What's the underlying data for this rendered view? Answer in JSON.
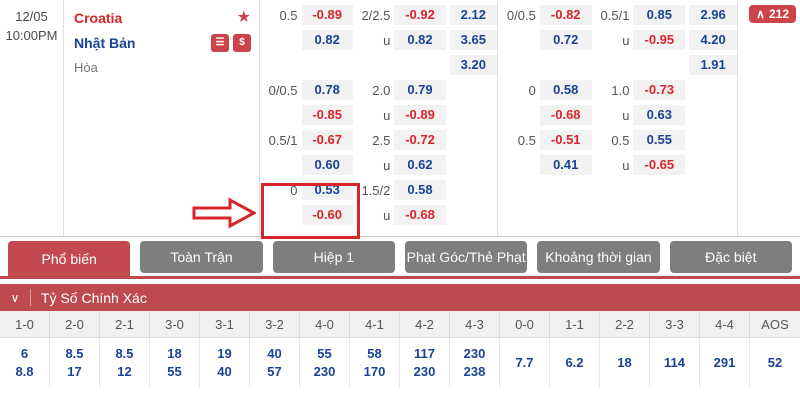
{
  "colors": {
    "odds_positive": "#1A4296",
    "odds_negative": "#D8242B",
    "accent_red": "#C4494F",
    "section_bar_red": "#BE4A50",
    "tab_inactive_gray": "#7E7E7E",
    "odds_cell_bg": "#F2F2F2",
    "highlight_red": "#D8242B"
  },
  "icons": {
    "favorite_glyph": "★",
    "stats_glyph": "☰",
    "money_glyph": "$",
    "collapse_glyph": "∨",
    "badge_up_glyph": "∧"
  },
  "match": {
    "date": "12/05",
    "time": "10:00PM",
    "home_team": "Croatia",
    "away_team": "Nhật Bản",
    "draw_label": "Hòa",
    "badge_count": "212"
  },
  "odds_groups": [
    {
      "blocks": [
        {
          "rows": [
            [
              "0.5",
              "-0.89",
              "2/2.5",
              "-0.92",
              "2.12"
            ],
            [
              "",
              "0.82",
              "u",
              "0.82",
              "3.65"
            ],
            [
              "",
              "",
              "",
              "",
              "3.20"
            ]
          ]
        },
        {
          "rows": [
            [
              "0/0.5",
              "0.78",
              "2.0",
              "0.79",
              ""
            ],
            [
              "",
              "-0.85",
              "u",
              "-0.89",
              ""
            ]
          ]
        },
        {
          "rows": [
            [
              "0.5/1",
              "-0.67",
              "2.5",
              "-0.72",
              ""
            ],
            [
              "",
              "0.60",
              "u",
              "0.62",
              ""
            ]
          ]
        },
        {
          "rows": [
            [
              "0",
              "0.53",
              "1.5/2",
              "0.58",
              ""
            ],
            [
              "",
              "-0.60",
              "u",
              "-0.68",
              ""
            ]
          ]
        }
      ]
    },
    {
      "blocks": [
        {
          "rows": [
            [
              "0/0.5",
              "-0.82",
              "0.5/1",
              "0.85",
              "2.96"
            ],
            [
              "",
              "0.72",
              "u",
              "-0.95",
              "4.20"
            ],
            [
              "",
              "",
              "",
              "",
              "1.91"
            ]
          ]
        },
        {
          "rows": [
            [
              "0",
              "0.58",
              "1.0",
              "-0.73",
              ""
            ],
            [
              "",
              "-0.68",
              "u",
              "0.63",
              ""
            ]
          ]
        },
        {
          "rows": [
            [
              "0.5",
              "-0.51",
              "0.5",
              "0.55",
              ""
            ],
            [
              "",
              "0.41",
              "u",
              "-0.65",
              ""
            ]
          ]
        }
      ]
    }
  ],
  "tabs": [
    {
      "label": "Phổ biến",
      "active": true
    },
    {
      "label": "Toàn Trận",
      "active": false
    },
    {
      "label": "Hiệp 1",
      "active": false
    },
    {
      "label": "Phạt Góc/Thẻ Phạt",
      "active": false
    },
    {
      "label": "Khoảng thời gian",
      "active": false
    },
    {
      "label": "Đặc biệt",
      "active": false
    }
  ],
  "correct_score_section": {
    "title": "Tỷ Số Chính Xác",
    "columns": [
      "1-0",
      "2-0",
      "2-1",
      "3-0",
      "3-1",
      "3-2",
      "4-0",
      "4-1",
      "4-2",
      "4-3",
      "0-0",
      "1-1",
      "2-2",
      "3-3",
      "4-4",
      "AOS"
    ],
    "values": [
      [
        "6",
        "8.8"
      ],
      [
        "8.5",
        "17"
      ],
      [
        "8.5",
        "12"
      ],
      [
        "18",
        "55"
      ],
      [
        "19",
        "40"
      ],
      [
        "40",
        "57"
      ],
      [
        "55",
        "230"
      ],
      [
        "58",
        "170"
      ],
      [
        "117",
        "230"
      ],
      [
        "230",
        "238"
      ],
      [
        "7.7"
      ],
      [
        "6.2"
      ],
      [
        "18"
      ],
      [
        "114"
      ],
      [
        "291"
      ],
      [
        "52"
      ]
    ]
  }
}
